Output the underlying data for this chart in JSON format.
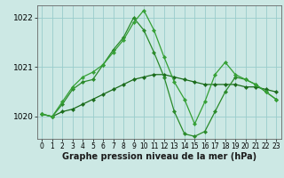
{
  "xlabel": "Graphe pression niveau de la mer (hPa)",
  "background_color": "#cce8e4",
  "grid_color": "#99cccc",
  "line_color1": "#1a6b1a",
  "line_color2": "#2a8a2a",
  "line_color3": "#35a035",
  "ylim": [
    1019.55,
    1022.25
  ],
  "xlim": [
    -0.5,
    23.5
  ],
  "yticks": [
    1020,
    1021,
    1022
  ],
  "xticks": [
    0,
    1,
    2,
    3,
    4,
    5,
    6,
    7,
    8,
    9,
    10,
    11,
    12,
    13,
    14,
    15,
    16,
    17,
    18,
    19,
    20,
    21,
    22,
    23
  ],
  "series1_x": [
    0,
    1,
    2,
    3,
    4,
    5,
    6,
    7,
    8,
    9,
    10,
    11,
    12,
    13,
    14,
    15,
    16,
    17,
    18,
    19,
    20,
    21,
    22,
    23
  ],
  "series1_y": [
    1020.05,
    1020.0,
    1020.1,
    1020.15,
    1020.25,
    1020.35,
    1020.45,
    1020.55,
    1020.65,
    1020.75,
    1020.8,
    1020.85,
    1020.85,
    1020.8,
    1020.75,
    1020.7,
    1020.65,
    1020.65,
    1020.65,
    1020.65,
    1020.6,
    1020.6,
    1020.55,
    1020.5
  ],
  "series2_x": [
    0,
    1,
    2,
    3,
    4,
    5,
    6,
    7,
    8,
    9,
    10,
    11,
    12,
    13,
    14,
    15,
    16,
    17,
    18,
    19,
    20,
    21,
    22,
    23
  ],
  "series2_y": [
    1020.05,
    1020.0,
    1020.25,
    1020.55,
    1020.7,
    1020.75,
    1021.05,
    1021.35,
    1021.6,
    1022.0,
    1021.75,
    1021.3,
    1020.8,
    1020.1,
    1019.65,
    1019.6,
    1019.7,
    1020.1,
    1020.5,
    1020.8,
    1020.75,
    1020.65,
    1020.5,
    1020.35
  ],
  "series3_x": [
    0,
    1,
    2,
    3,
    4,
    5,
    6,
    7,
    8,
    9,
    10,
    11,
    12,
    13,
    14,
    15,
    16,
    17,
    18,
    19,
    20,
    21,
    22,
    23
  ],
  "series3_y": [
    1020.05,
    1020.0,
    1020.3,
    1020.6,
    1020.8,
    1020.9,
    1021.05,
    1021.3,
    1021.55,
    1021.9,
    1022.15,
    1021.75,
    1021.2,
    1020.7,
    1020.35,
    1019.85,
    1020.3,
    1020.85,
    1021.1,
    1020.85,
    1020.75,
    1020.65,
    1020.5,
    1020.35
  ],
  "marker": "D",
  "marker_size": 2.2,
  "linewidth": 0.9,
  "xlabel_fontsize": 7,
  "ytick_fontsize": 6.5,
  "xtick_fontsize": 5.5
}
